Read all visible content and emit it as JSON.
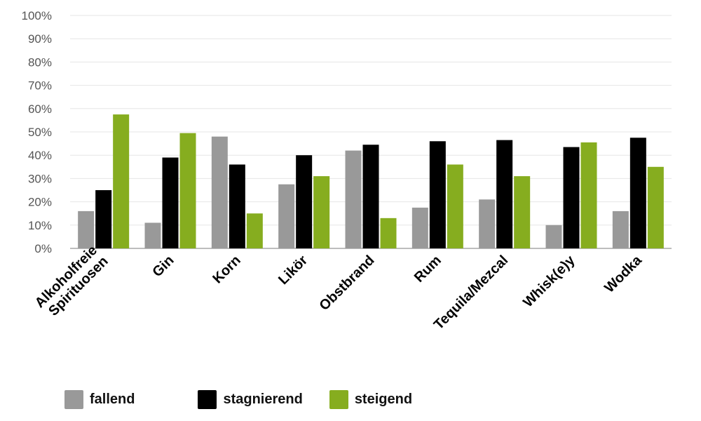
{
  "chart_data": {
    "type": "bar",
    "categories": [
      "Alkoholfreie\nSpirituosen",
      "Gin",
      "Korn",
      "Likör",
      "Obstbrand",
      "Rum",
      "Tequila/Mezcal",
      "Whisk(e)y",
      "Wodka"
    ],
    "series": [
      {
        "name": "fallend",
        "color": "#999999",
        "values": [
          16,
          11,
          48,
          27.5,
          42,
          17.5,
          21,
          10,
          16
        ]
      },
      {
        "name": "stagnierend",
        "color": "#000000",
        "values": [
          25,
          39,
          36,
          40,
          44.5,
          46,
          46.5,
          43.5,
          47.5
        ]
      },
      {
        "name": "steigend",
        "color": "#86ad1f",
        "values": [
          57.5,
          49.5,
          15,
          31,
          13,
          36,
          31,
          45.5,
          35
        ]
      }
    ],
    "y_ticks": [
      "0%",
      "10%",
      "20%",
      "30%",
      "40%",
      "50%",
      "60%",
      "70%",
      "80%",
      "90%",
      "100%"
    ],
    "ylim": [
      0,
      100
    ],
    "grid": true,
    "legend_position": "bottom-left"
  }
}
